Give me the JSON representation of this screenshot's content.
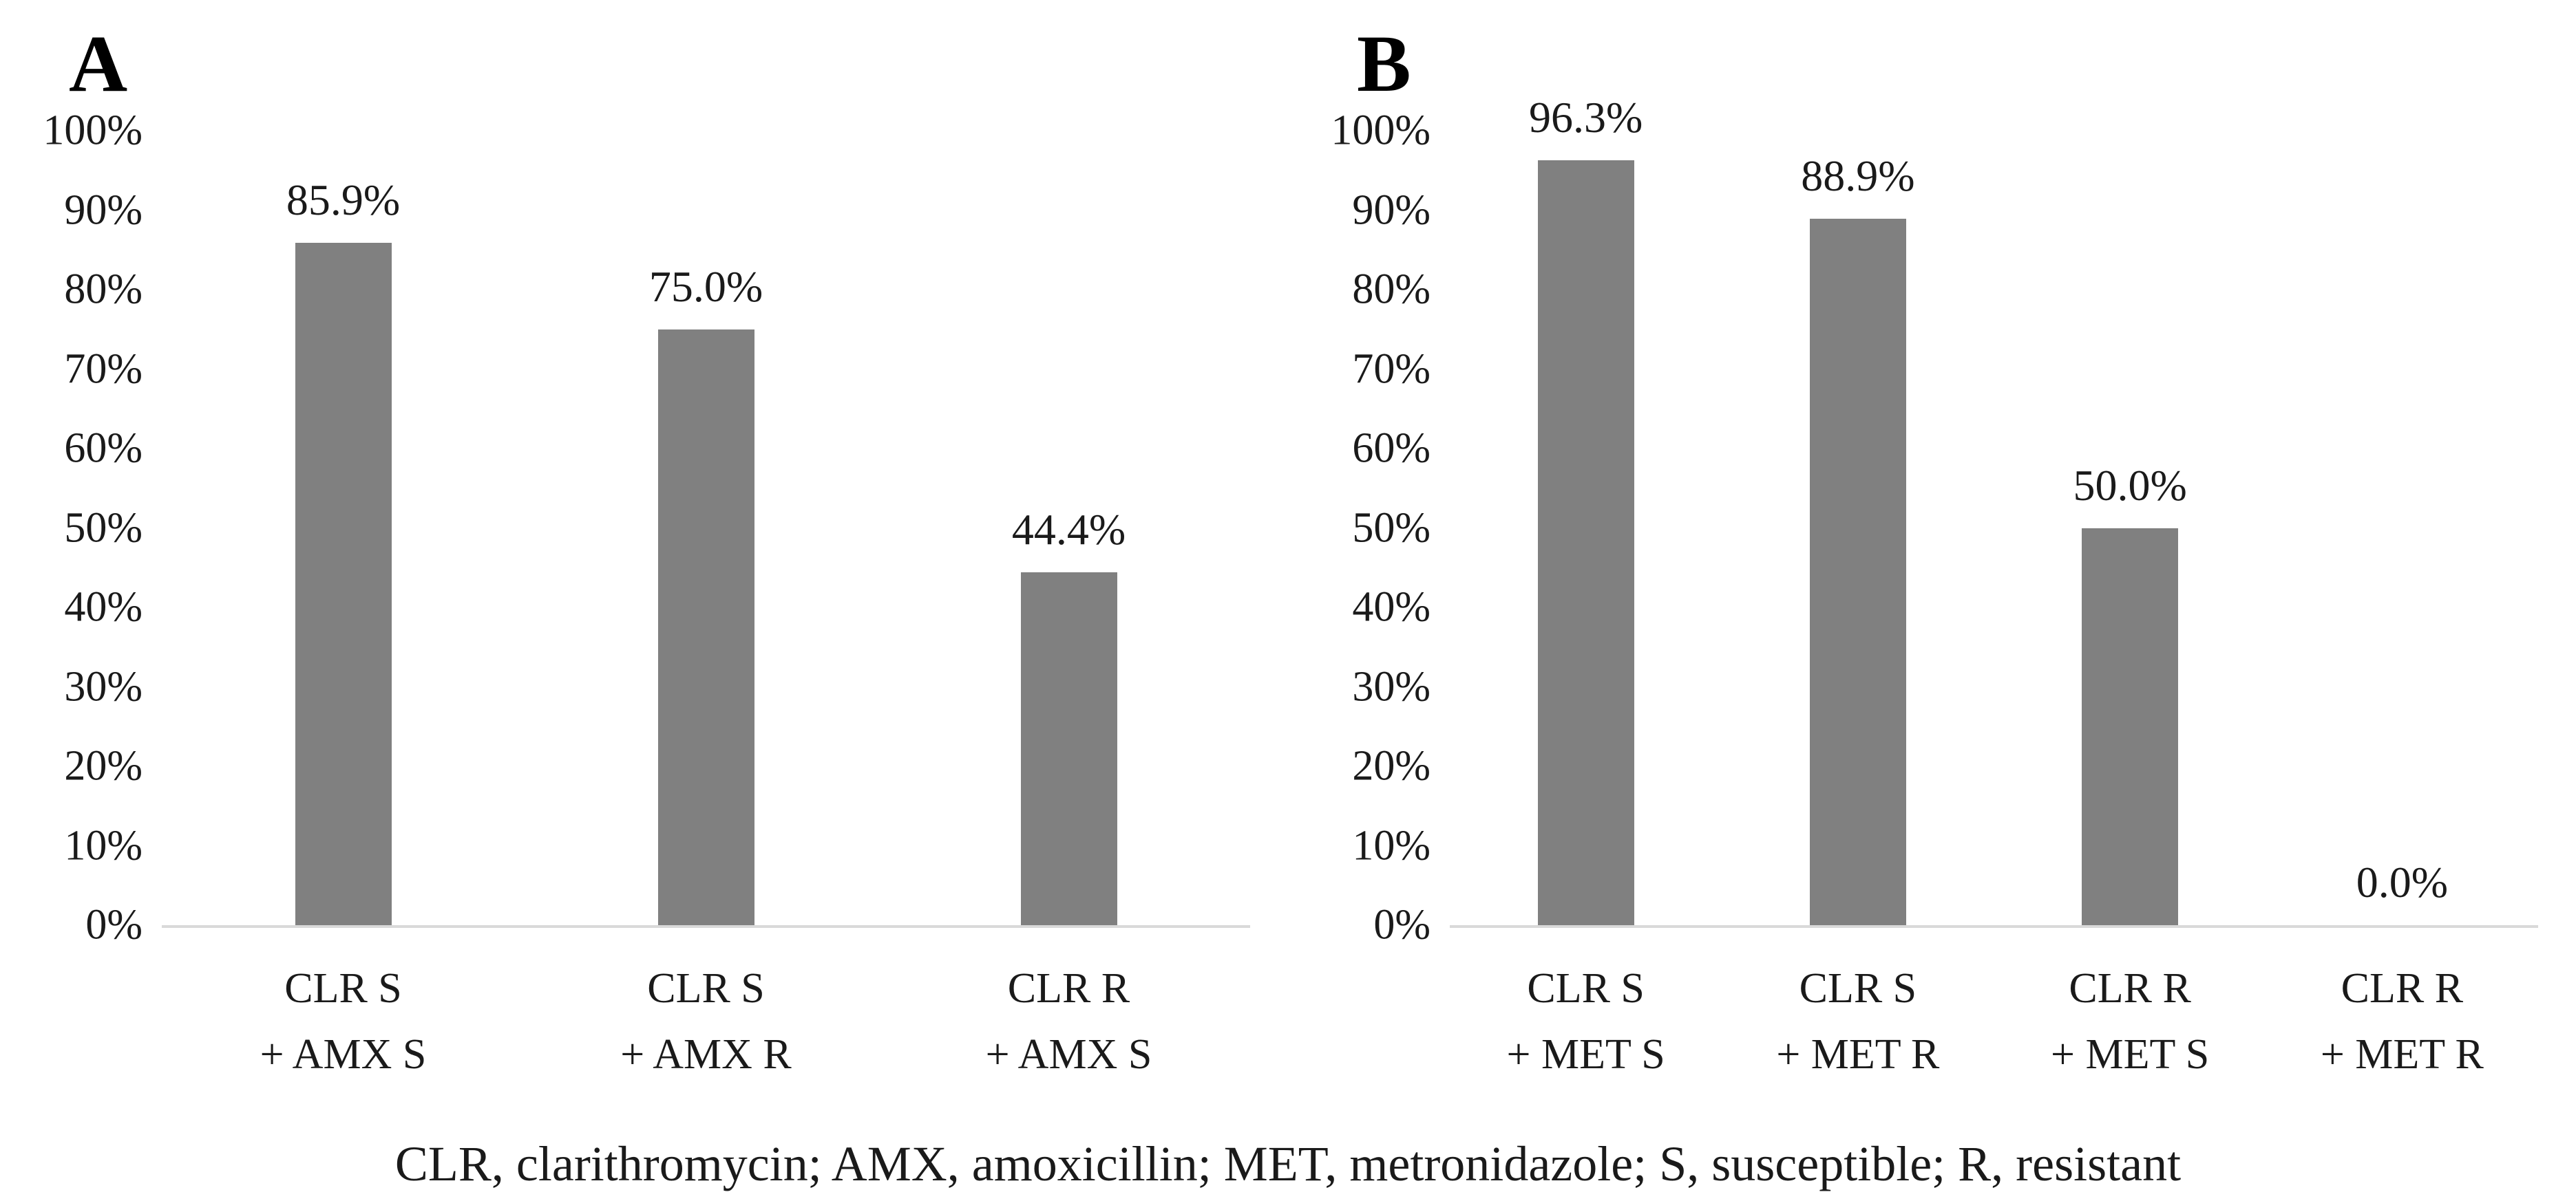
{
  "footnote": "CLR, clarithromycin; AMX, amoxicillin; MET, metronidazole; S, susceptible; R, resistant",
  "colors": {
    "bar": "#808080",
    "axis_line": "#d9d9d9",
    "text": "#000000",
    "background": "#ffffff"
  },
  "chart_data": [
    {
      "type": "bar",
      "panel_label": "A",
      "categories": [
        "CLR S\n+ AMX S",
        "CLR S\n+ AMX R",
        "CLR R\n+ AMX S"
      ],
      "values": [
        85.9,
        75.0,
        44.4
      ],
      "data_labels": [
        "85.9%",
        "75.0%",
        "44.4%"
      ],
      "title": "",
      "xlabel": "",
      "ylabel": "",
      "ylim": [
        0,
        100
      ],
      "grid": false,
      "legend": false,
      "bar_color": "#808080",
      "yticks": [
        {
          "label": "0%",
          "value": 0
        },
        {
          "label": "10%",
          "value": 10
        },
        {
          "label": "20%",
          "value": 20
        },
        {
          "label": "30%",
          "value": 30
        },
        {
          "label": "40%",
          "value": 40
        },
        {
          "label": "50%",
          "value": 50
        },
        {
          "label": "60%",
          "value": 60
        },
        {
          "label": "70%",
          "value": 70
        },
        {
          "label": "80%",
          "value": 80
        },
        {
          "label": "90%",
          "value": 90
        },
        {
          "label": "100%",
          "value": 100
        }
      ]
    },
    {
      "type": "bar",
      "panel_label": "B",
      "categories": [
        "CLR S\n+ MET S",
        "CLR S\n+ MET R",
        "CLR R\n+ MET S",
        "CLR R\n+ MET R"
      ],
      "values": [
        96.3,
        88.9,
        50.0,
        0.0
      ],
      "data_labels": [
        "96.3%",
        "88.9%",
        "50.0%",
        "0.0%"
      ],
      "title": "",
      "xlabel": "",
      "ylabel": "",
      "ylim": [
        0,
        100
      ],
      "grid": false,
      "legend": false,
      "bar_color": "#808080",
      "yticks": [
        {
          "label": "0%",
          "value": 0
        },
        {
          "label": "10%",
          "value": 10
        },
        {
          "label": "20%",
          "value": 20
        },
        {
          "label": "30%",
          "value": 30
        },
        {
          "label": "40%",
          "value": 40
        },
        {
          "label": "50%",
          "value": 50
        },
        {
          "label": "60%",
          "value": 60
        },
        {
          "label": "70%",
          "value": 70
        },
        {
          "label": "80%",
          "value": 80
        },
        {
          "label": "90%",
          "value": 90
        },
        {
          "label": "100%",
          "value": 100
        }
      ]
    }
  ]
}
